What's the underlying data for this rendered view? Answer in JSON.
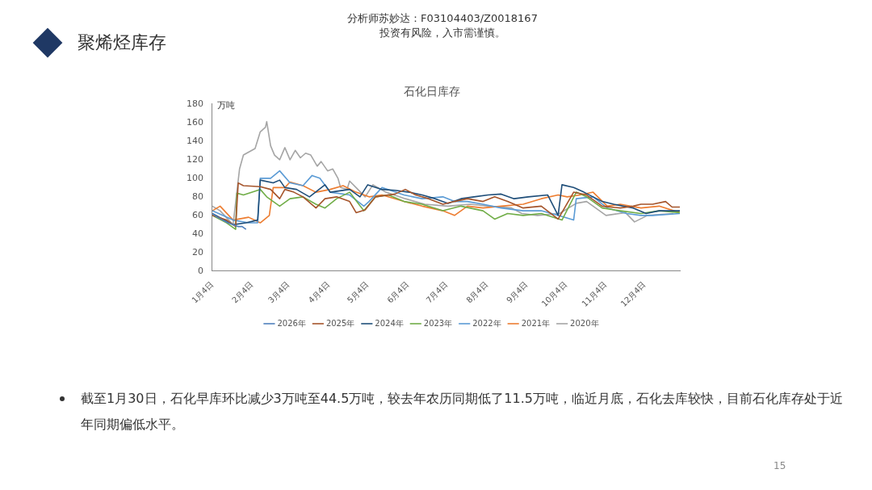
{
  "chart_data": {
    "type": "line",
    "title": "石化日库存",
    "ylabel": "万吨",
    "legend": "bottom",
    "grid": false,
    "marker": "none",
    "line_style": "solid",
    "xlim": [
      "--01-04",
      "--12-31"
    ],
    "ylim": [
      0,
      180
    ],
    "yticks": [
      0,
      20,
      40,
      60,
      80,
      100,
      120,
      140,
      160,
      180
    ],
    "xticks": [
      {
        "value": "--01-04",
        "label": "1月4日"
      },
      {
        "value": "--02-04",
        "label": "2月4日"
      },
      {
        "value": "--03-04",
        "label": "3月4日"
      },
      {
        "value": "--04-04",
        "label": "4月4日"
      },
      {
        "value": "--05-04",
        "label": "5月4日"
      },
      {
        "value": "--06-04",
        "label": "6月4日"
      },
      {
        "value": "--07-04",
        "label": "7月4日"
      },
      {
        "value": "--08-04",
        "label": "8月4日"
      },
      {
        "value": "--09-04",
        "label": "9月4日"
      },
      {
        "value": "--10-04",
        "label": "10月4日"
      },
      {
        "value": "--11-04",
        "label": "11月4日"
      },
      {
        "value": "--12-04",
        "label": "12月4日"
      }
    ],
    "annotations": [
      "分析师苏妙达：F03104403/Z0018167",
      "投资有风险，入市需谨慎。",
      "聚烯烃库存",
      "截至1月30日，石化早库环比减少3万吨至44.5万吨，较去年农历同期低了11.5万吨，临近月底，石化去库较快，目前石化库存处于近年同期偏低水平。",
      "15"
    ],
    "series": [
      {
        "name": "2026年",
        "color": "#4f81bd",
        "x": [
          "--01-04",
          "--01-08",
          "--01-12",
          "--01-16",
          "--01-20",
          "--01-24",
          "--01-27",
          "--01-30"
        ],
        "values": [
          62,
          58,
          55,
          52,
          50,
          48,
          48,
          45
        ]
      },
      {
        "name": "2025年",
        "color": "#a5542a",
        "x": [
          "--01-04",
          "--01-15",
          "--01-22",
          "--01-24",
          "--01-28",
          "--02-10",
          "--02-18",
          "--02-25",
          "--03-01",
          "--03-08",
          "--03-15",
          "--03-25",
          "--04-01",
          "--04-10",
          "--04-20",
          "--04-25",
          "--05-02",
          "--05-10",
          "--05-25",
          "--06-02",
          "--06-10",
          "--06-20",
          "--07-01",
          "--07-10",
          "--07-20",
          "--08-01",
          "--08-10",
          "--08-20",
          "--09-01",
          "--09-15",
          "--09-28",
          "--10-10",
          "--10-20",
          "--11-01",
          "--11-15",
          "--11-25",
          "--12-01",
          "--12-10",
          "--12-20",
          "--12-25",
          "--12-31"
        ],
        "values": [
          60,
          55,
          48,
          95,
          92,
          91,
          88,
          78,
          88,
          85,
          80,
          68,
          78,
          80,
          75,
          63,
          66,
          80,
          83,
          88,
          82,
          78,
          72,
          75,
          78,
          75,
          80,
          75,
          68,
          70,
          56,
          85,
          82,
          70,
          68,
          70,
          72,
          72,
          75,
          69,
          69
        ]
      },
      {
        "name": "2024年",
        "color": "#1f4e79",
        "x": [
          "--01-04",
          "--01-20",
          "--01-30",
          "--02-08",
          "--02-10",
          "--02-20",
          "--02-25",
          "--03-01",
          "--03-10",
          "--03-20",
          "--04-01",
          "--04-05",
          "--04-20",
          "--04-28",
          "--05-04",
          "--05-15",
          "--05-25",
          "--06-05",
          "--06-15",
          "--06-25",
          "--07-05",
          "--07-15",
          "--07-25",
          "--08-05",
          "--08-15",
          "--08-25",
          "--09-05",
          "--09-20",
          "--09-28",
          "--10-01",
          "--10-10",
          "--10-18",
          "--11-01",
          "--11-10",
          "--11-25",
          "--12-05",
          "--12-15",
          "--12-31"
        ],
        "values": [
          62,
          50,
          52,
          55,
          98,
          95,
          98,
          90,
          88,
          80,
          93,
          85,
          88,
          80,
          93,
          88,
          87,
          85,
          82,
          78,
          73,
          78,
          80,
          82,
          83,
          78,
          80,
          82,
          60,
          93,
          90,
          85,
          75,
          72,
          68,
          62,
          65,
          65
        ]
      },
      {
        "name": "2023年",
        "color": "#70ad47",
        "x": [
          "--01-04",
          "--01-15",
          "--01-22",
          "--01-23",
          "--01-28",
          "--02-10",
          "--02-15",
          "--02-25",
          "--03-05",
          "--03-15",
          "--03-25",
          "--04-01",
          "--04-10",
          "--04-20",
          "--05-01",
          "--05-10",
          "--05-20",
          "--06-01",
          "--06-15",
          "--07-01",
          "--07-15",
          "--08-01",
          "--08-10",
          "--08-20",
          "--09-01",
          "--09-15",
          "--10-01",
          "--10-12",
          "--10-20",
          "--11-01",
          "--11-15",
          "--12-01",
          "--12-15",
          "--12-31"
        ],
        "values": [
          60,
          52,
          45,
          84,
          82,
          88,
          80,
          70,
          78,
          80,
          72,
          68,
          78,
          85,
          65,
          80,
          82,
          75,
          72,
          65,
          70,
          65,
          56,
          62,
          60,
          62,
          55,
          85,
          80,
          68,
          65,
          62,
          65,
          63
        ]
      },
      {
        "name": "2022年",
        "color": "#5b9bd5",
        "x": [
          "--01-04",
          "--01-20",
          "--02-01",
          "--02-08",
          "--02-10",
          "--02-18",
          "--02-25",
          "--03-05",
          "--03-15",
          "--03-22",
          "--03-28",
          "--04-05",
          "--04-20",
          "--05-01",
          "--05-05",
          "--05-15",
          "--06-01",
          "--06-15",
          "--07-01",
          "--07-10",
          "--07-20",
          "--08-01",
          "--08-15",
          "--09-01",
          "--09-15",
          "--09-28",
          "--10-10",
          "--10-12",
          "--10-25",
          "--11-05",
          "--11-20",
          "--12-01",
          "--12-10",
          "--12-31"
        ],
        "values": [
          65,
          55,
          52,
          52,
          100,
          100,
          108,
          95,
          92,
          103,
          100,
          85,
          82,
          70,
          75,
          90,
          82,
          78,
          80,
          75,
          75,
          72,
          68,
          65,
          65,
          60,
          55,
          78,
          80,
          68,
          62,
          60,
          60,
          62
        ]
      },
      {
        "name": "2021年",
        "color": "#ed7d31",
        "x": [
          "--01-04",
          "--01-10",
          "--01-20",
          "--02-01",
          "--02-10",
          "--02-17",
          "--02-20",
          "--03-01",
          "--03-05",
          "--03-15",
          "--03-25",
          "--04-05",
          "--04-15",
          "--04-25",
          "--05-05",
          "--05-15",
          "--06-01",
          "--06-15",
          "--07-01",
          "--07-10",
          "--07-20",
          "--08-01",
          "--08-15",
          "--09-01",
          "--09-15",
          "--09-28",
          "--10-05",
          "--10-15",
          "--10-25",
          "--11-05",
          "--11-15",
          "--12-01",
          "--12-15",
          "--12-31"
        ],
        "values": [
          65,
          70,
          55,
          58,
          52,
          60,
          90,
          90,
          96,
          92,
          85,
          88,
          92,
          85,
          80,
          82,
          75,
          70,
          65,
          60,
          70,
          68,
          70,
          72,
          78,
          82,
          80,
          82,
          85,
          70,
          72,
          68,
          70,
          63
        ]
      },
      {
        "name": "2020年",
        "color": "#a5a5a5",
        "x": [
          "--01-04",
          "--01-10",
          "--01-20",
          "--01-25",
          "--01-28",
          "--02-06",
          "--02-10",
          "--02-14",
          "--02-15",
          "--02-18",
          "--02-21",
          "--02-25",
          "--03-01",
          "--03-05",
          "--03-09",
          "--03-13",
          "--03-17",
          "--03-21",
          "--03-26",
          "--03-29",
          "--04-03",
          "--04-07",
          "--04-11",
          "--04-13",
          "--04-18",
          "--04-20",
          "--04-25",
          "--05-02",
          "--05-08",
          "--05-18",
          "--06-02",
          "--06-17",
          "--07-05",
          "--07-22",
          "--08-06",
          "--08-23",
          "--08-31",
          "--09-12",
          "--09-29",
          "--10-12",
          "--10-20",
          "--10-30",
          "--11-04",
          "--11-19",
          "--11-26",
          "--12-06",
          "--12-26"
        ],
        "values": [
          70,
          65,
          50,
          110,
          125,
          132,
          150,
          155,
          161,
          135,
          125,
          120,
          133,
          120,
          130,
          122,
          127,
          125,
          113,
          118,
          108,
          110,
          100,
          90,
          88,
          97,
          90,
          80,
          93,
          85,
          78,
          72,
          70,
          72,
          70,
          68,
          62,
          60,
          62,
          73,
          75,
          65,
          60,
          63,
          53,
          60,
          62
        ]
      }
    ]
  }
}
